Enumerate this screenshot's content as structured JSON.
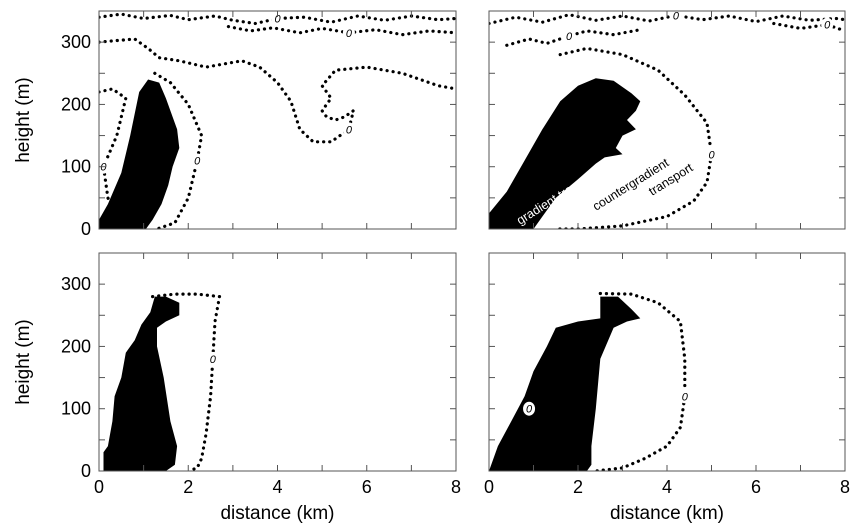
{
  "chart_data": [
    {
      "type": "area",
      "panel": "top-left",
      "xlim": [
        0,
        8
      ],
      "ylim": [
        0,
        350
      ],
      "ylabel": "height (m)",
      "xlabel": "",
      "yticks": [
        "0",
        "100",
        "200",
        "300"
      ],
      "xticks": [],
      "contour_label": "0",
      "negative_region": [
        [
          0,
          0
        ],
        [
          0,
          15
        ],
        [
          0.2,
          40
        ],
        [
          0.5,
          90
        ],
        [
          0.7,
          150
        ],
        [
          0.9,
          220
        ],
        [
          1.1,
          240
        ],
        [
          1.35,
          235
        ],
        [
          1.5,
          210
        ],
        [
          1.6,
          190
        ],
        [
          1.75,
          160
        ],
        [
          1.8,
          130
        ],
        [
          1.65,
          100
        ],
        [
          1.55,
          70
        ],
        [
          1.4,
          40
        ],
        [
          1.2,
          15
        ],
        [
          1.05,
          0
        ]
      ],
      "zero_contours": [
        [
          [
            0,
            220
          ],
          [
            0.3,
            225
          ],
          [
            0.6,
            210
          ],
          [
            0.4,
            150
          ],
          [
            0.1,
            100
          ],
          [
            0.2,
            50
          ],
          [
            0.4,
            20
          ],
          [
            0.7,
            0
          ]
        ],
        [
          [
            1.25,
            250
          ],
          [
            1.6,
            235
          ],
          [
            2.0,
            200
          ],
          [
            2.3,
            150
          ],
          [
            2.2,
            110
          ],
          [
            2.0,
            50
          ],
          [
            1.7,
            10
          ],
          [
            1.3,
            0
          ]
        ],
        [
          [
            0,
            300
          ],
          [
            0.8,
            305
          ],
          [
            1.1,
            290
          ],
          [
            1.35,
            275
          ],
          [
            1.8,
            270
          ],
          [
            2.4,
            260
          ],
          [
            3.2,
            270
          ],
          [
            3.6,
            260
          ],
          [
            4.0,
            235
          ],
          [
            4.3,
            205
          ],
          [
            4.5,
            160
          ],
          [
            4.8,
            140
          ],
          [
            5.2,
            140
          ],
          [
            5.6,
            160
          ],
          [
            5.7,
            190
          ],
          [
            5.5,
            180
          ],
          [
            5.3,
            175
          ],
          [
            5.1,
            180
          ],
          [
            5.0,
            190
          ],
          [
            5.2,
            210
          ],
          [
            5.0,
            230
          ],
          [
            5.3,
            255
          ],
          [
            6.0,
            260
          ],
          [
            6.8,
            250
          ],
          [
            7.6,
            230
          ],
          [
            8,
            225
          ]
        ],
        [
          [
            0,
            340
          ],
          [
            0.5,
            345
          ],
          [
            1,
            338
          ],
          [
            1.6,
            343
          ],
          [
            2.0,
            336
          ],
          [
            2.6,
            342
          ],
          [
            3.0,
            335
          ],
          [
            3.5,
            330
          ],
          [
            4.0,
            338
          ],
          [
            4.6,
            340
          ],
          [
            5.2,
            332
          ],
          [
            5.8,
            342
          ],
          [
            6.4,
            335
          ],
          [
            7.0,
            342
          ],
          [
            7.6,
            336
          ],
          [
            8,
            338
          ]
        ],
        [
          [
            2.9,
            325
          ],
          [
            3.4,
            318
          ],
          [
            3.9,
            323
          ],
          [
            4.5,
            315
          ],
          [
            5.0,
            322
          ],
          [
            5.6,
            315
          ],
          [
            6.2,
            320
          ],
          [
            6.8,
            312
          ],
          [
            7.4,
            318
          ],
          [
            8,
            315
          ]
        ]
      ]
    },
    {
      "type": "area",
      "panel": "top-right",
      "xlim": [
        0,
        8
      ],
      "ylim": [
        0,
        350
      ],
      "ylabel": "",
      "xlabel": "",
      "yticks": [],
      "xticks": [],
      "contour_label": "0",
      "annotations": [
        "gradient transport",
        "countergradient",
        "transport"
      ],
      "negative_region": [
        [
          0,
          0
        ],
        [
          0,
          25
        ],
        [
          0.4,
          60
        ],
        [
          0.8,
          110
        ],
        [
          1.2,
          160
        ],
        [
          1.6,
          205
        ],
        [
          2.0,
          230
        ],
        [
          2.4,
          242
        ],
        [
          2.8,
          238
        ],
        [
          3.2,
          218
        ],
        [
          3.4,
          205
        ],
        [
          3.3,
          190
        ],
        [
          3.1,
          175
        ],
        [
          3.3,
          160
        ],
        [
          3.0,
          150
        ],
        [
          2.85,
          130
        ],
        [
          3.0,
          120
        ],
        [
          2.6,
          115
        ],
        [
          2.4,
          105
        ],
        [
          2.0,
          80
        ],
        [
          1.5,
          50
        ],
        [
          1.2,
          20
        ],
        [
          1.0,
          0
        ]
      ],
      "zero_contours": [
        [
          [
            1.6,
            280
          ],
          [
            2.2,
            290
          ],
          [
            3.0,
            280
          ],
          [
            3.8,
            255
          ],
          [
            4.4,
            215
          ],
          [
            4.9,
            170
          ],
          [
            5.0,
            120
          ],
          [
            4.9,
            75
          ],
          [
            4.6,
            45
          ],
          [
            4.0,
            20
          ],
          [
            3.0,
            5
          ],
          [
            2.0,
            0
          ],
          [
            1.5,
            0
          ]
        ],
        [
          [
            0,
            330
          ],
          [
            0.6,
            340
          ],
          [
            1.2,
            332
          ],
          [
            1.8,
            344
          ],
          [
            2.4,
            335
          ],
          [
            3.0,
            342
          ],
          [
            3.6,
            334
          ],
          [
            4.2,
            343
          ],
          [
            4.8,
            336
          ],
          [
            5.4,
            342
          ],
          [
            6.0,
            333
          ],
          [
            6.6,
            342
          ],
          [
            7.2,
            335
          ],
          [
            7.8,
            338
          ],
          [
            8,
            336
          ]
        ],
        [
          [
            0.4,
            295
          ],
          [
            0.9,
            305
          ],
          [
            1.3,
            298
          ],
          [
            1.8,
            310
          ],
          [
            2.2,
            318
          ],
          [
            2.8,
            312
          ],
          [
            3.4,
            320
          ]
        ],
        [
          [
            6.4,
            330
          ],
          [
            7.0,
            322
          ],
          [
            7.6,
            328
          ],
          [
            8,
            318
          ]
        ]
      ]
    },
    {
      "type": "area",
      "panel": "bottom-left",
      "xlim": [
        0,
        8
      ],
      "ylim": [
        0,
        350
      ],
      "ylabel": "height (m)",
      "xlabel": "distance (km)",
      "yticks": [
        "0",
        "100",
        "200",
        "300"
      ],
      "xticks": [
        "0",
        "2",
        "4",
        "6",
        "8"
      ],
      "contour_label": "0",
      "negative_region": [
        [
          0.1,
          0
        ],
        [
          0.1,
          30
        ],
        [
          0.2,
          40
        ],
        [
          0.3,
          80
        ],
        [
          0.35,
          120
        ],
        [
          0.5,
          150
        ],
        [
          0.6,
          190
        ],
        [
          0.8,
          210
        ],
        [
          0.95,
          235
        ],
        [
          1.15,
          255
        ],
        [
          1.25,
          280
        ],
        [
          1.5,
          280
        ],
        [
          1.8,
          270
        ],
        [
          1.8,
          250
        ],
        [
          1.5,
          240
        ],
        [
          1.3,
          230
        ],
        [
          1.3,
          200
        ],
        [
          1.45,
          150
        ],
        [
          1.6,
          80
        ],
        [
          1.75,
          40
        ],
        [
          1.7,
          10
        ],
        [
          1.5,
          0
        ]
      ],
      "zero_contours": [
        [
          [
            1.2,
            280
          ],
          [
            1.7,
            284
          ],
          [
            2.2,
            284
          ],
          [
            2.7,
            280
          ],
          [
            2.6,
            240
          ],
          [
            2.55,
            180
          ],
          [
            2.5,
            120
          ],
          [
            2.4,
            60
          ],
          [
            2.3,
            20
          ],
          [
            2.2,
            5
          ],
          [
            2.0,
            0
          ]
        ]
      ]
    },
    {
      "type": "area",
      "panel": "bottom-right",
      "xlim": [
        0,
        8
      ],
      "ylim": [
        0,
        350
      ],
      "ylabel": "",
      "xlabel": "distance (km)",
      "yticks": [],
      "xticks": [
        "0",
        "2",
        "4",
        "6",
        "8"
      ],
      "contour_label": "0",
      "negative_region": [
        [
          0,
          0
        ],
        [
          0.2,
          40
        ],
        [
          0.5,
          80
        ],
        [
          0.8,
          120
        ],
        [
          1.0,
          160
        ],
        [
          1.3,
          200
        ],
        [
          1.5,
          230
        ],
        [
          2.0,
          240
        ],
        [
          2.5,
          245
        ],
        [
          2.5,
          280
        ],
        [
          2.9,
          280
        ],
        [
          3.2,
          260
        ],
        [
          3.4,
          245
        ],
        [
          3.1,
          240
        ],
        [
          2.8,
          230
        ],
        [
          2.5,
          180
        ],
        [
          2.4,
          100
        ],
        [
          2.3,
          40
        ],
        [
          2.3,
          10
        ],
        [
          2.2,
          0
        ]
      ],
      "zero_contours": [
        [
          [
            2.5,
            285
          ],
          [
            3.2,
            284
          ],
          [
            3.8,
            270
          ],
          [
            4.3,
            240
          ],
          [
            4.4,
            180
          ],
          [
            4.4,
            120
          ],
          [
            4.3,
            70
          ],
          [
            4.0,
            40
          ],
          [
            3.5,
            20
          ],
          [
            3.0,
            5
          ],
          [
            2.4,
            0
          ]
        ],
        [
          [
            0.3,
            30
          ],
          [
            0.6,
            60
          ],
          [
            0.9,
            100
          ],
          [
            1.2,
            140
          ],
          [
            1.5,
            175
          ]
        ]
      ]
    }
  ]
}
